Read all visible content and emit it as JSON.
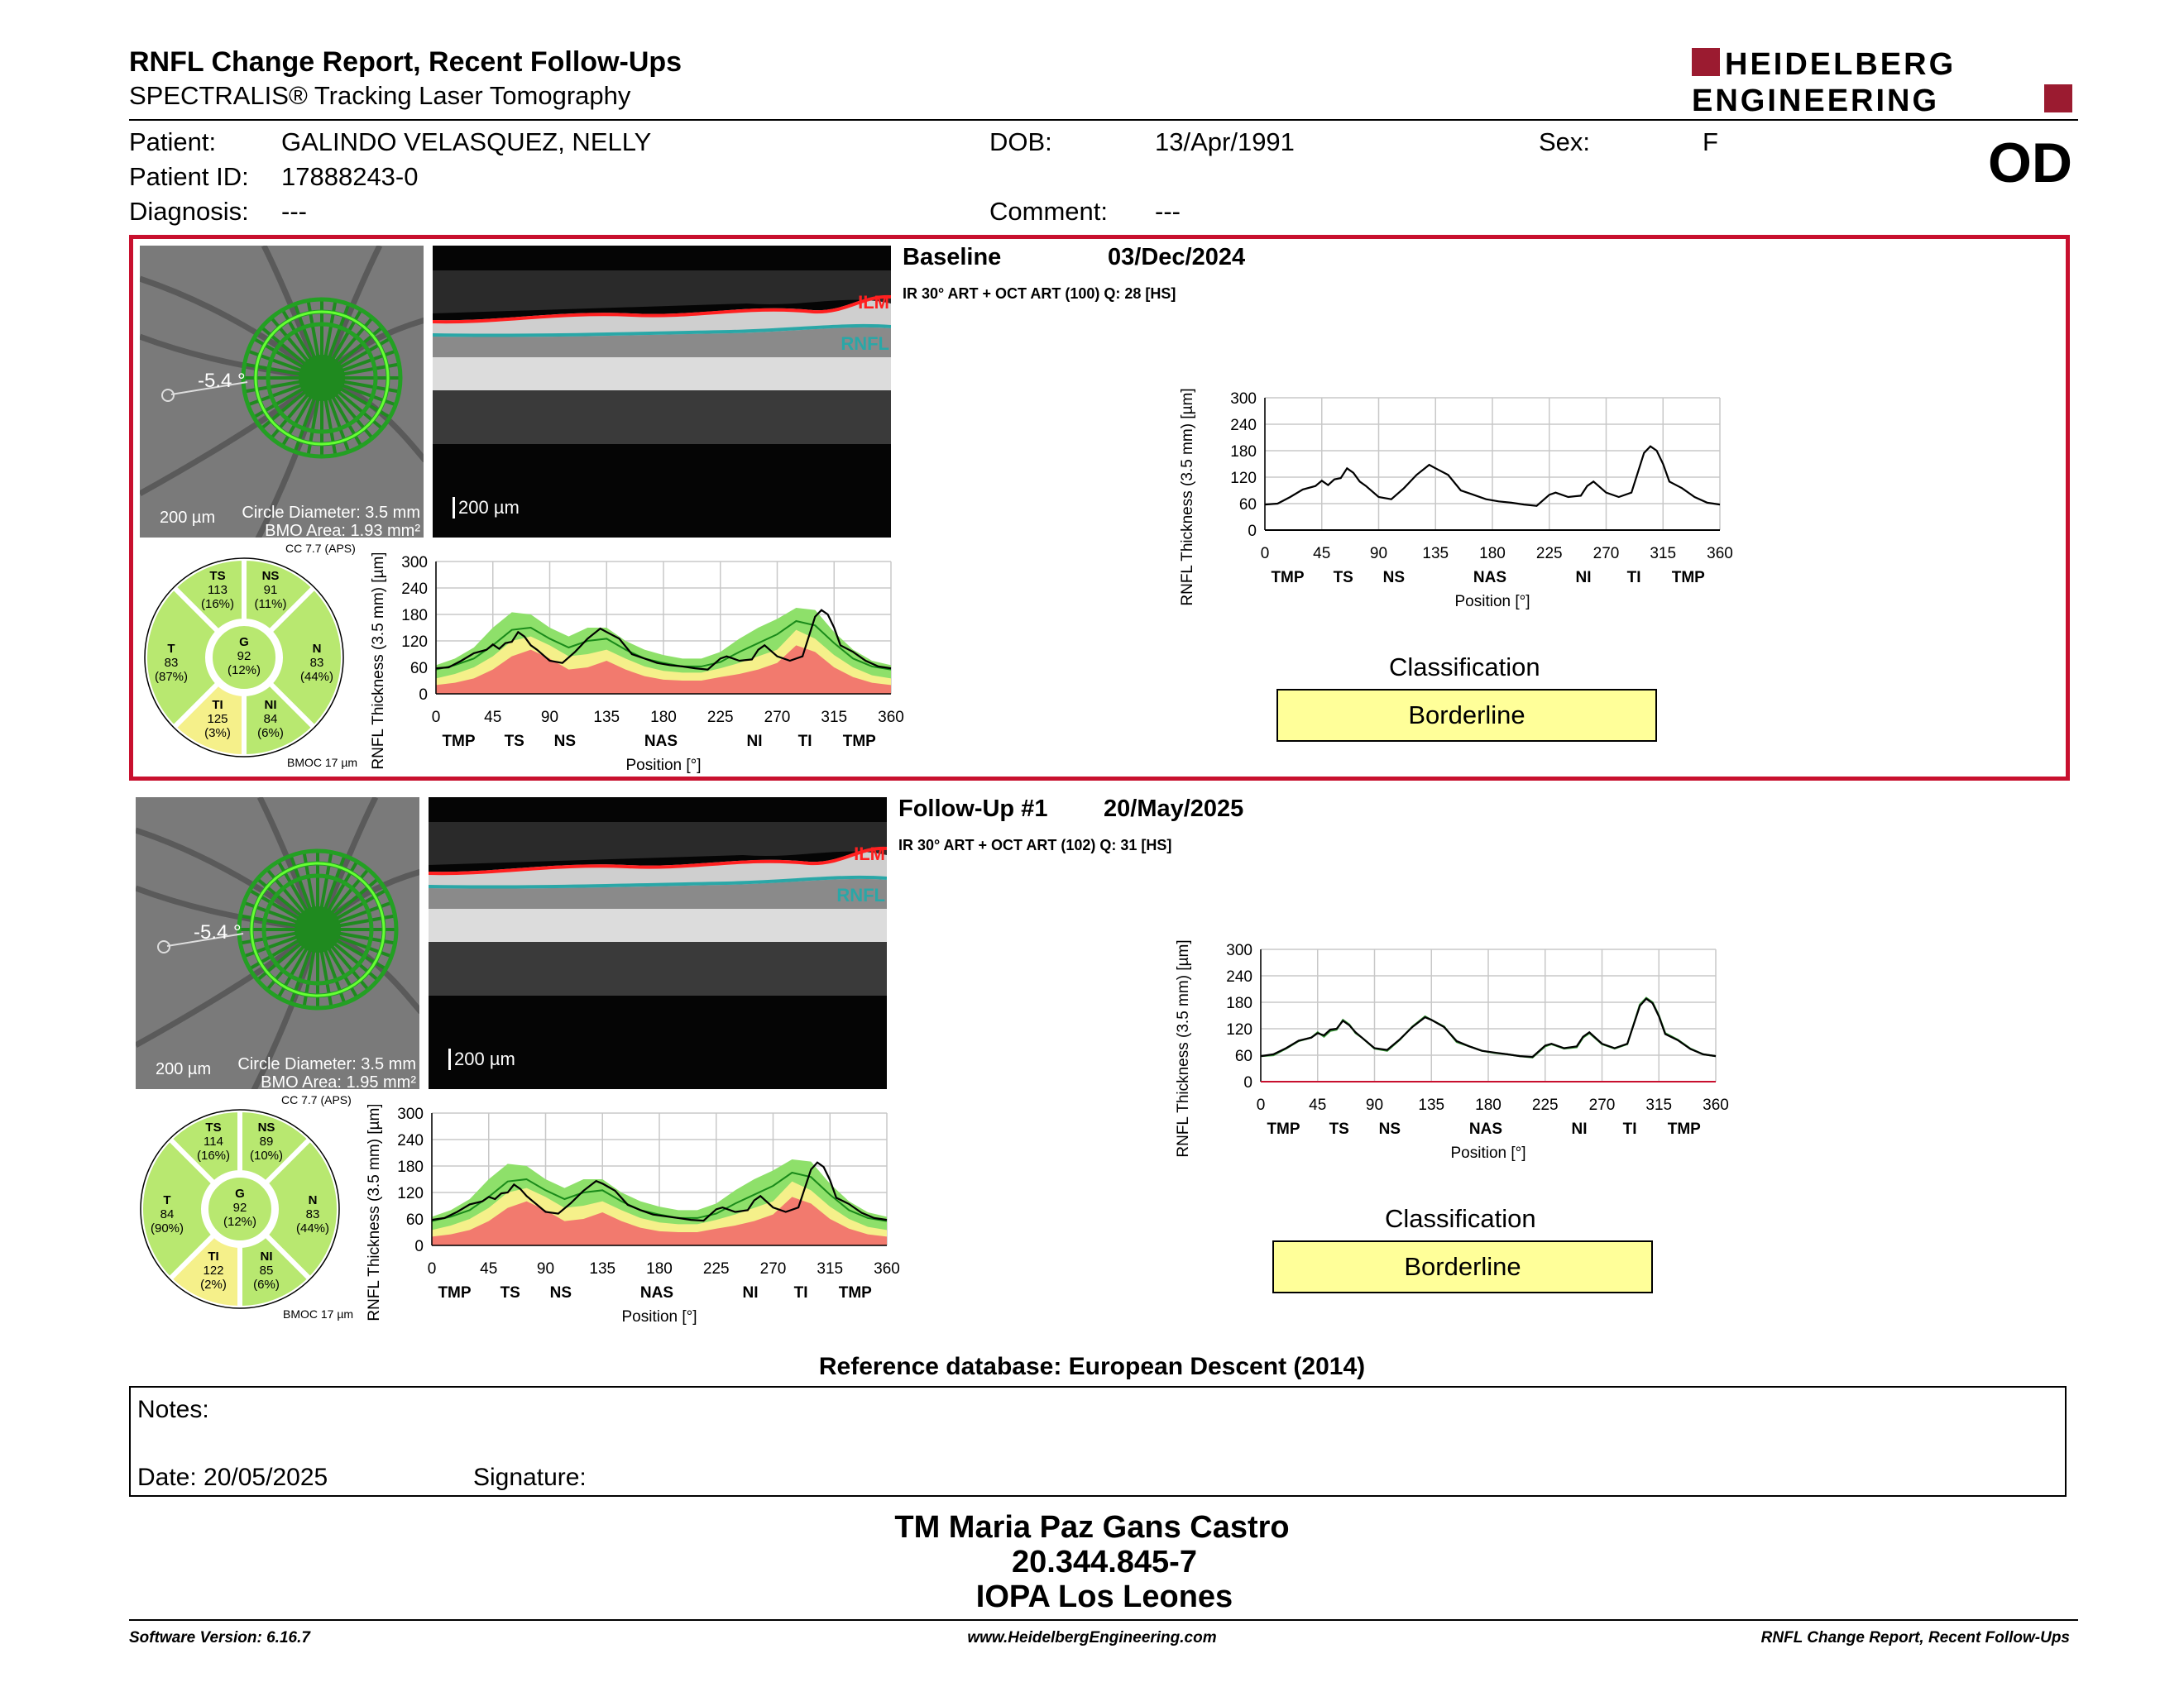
{
  "header": {
    "title": "RNFL Change Report, Recent Follow-Ups",
    "subtitle": "SPECTRALIS® Tracking Laser Tomography",
    "logo_line1": "HEIDELBERG",
    "logo_line2": "ENGINEERING",
    "eye": "OD"
  },
  "patient": {
    "patient_label": "Patient:",
    "patient_value": "GALINDO VELASQUEZ, NELLY",
    "id_label": "Patient ID:",
    "id_value": "17888243-0",
    "diagnosis_label": "Diagnosis:",
    "diagnosis_value": "---",
    "dob_label": "DOB:",
    "dob_value": "13/Apr/1991",
    "comment_label": "Comment:",
    "comment_value": "---",
    "sex_label": "Sex:",
    "sex_value": "F"
  },
  "exams": [
    {
      "title": "Baseline",
      "date": "03/Dec/2024",
      "scan_info": "IR 30° ART + OCT ART (100) Q: 28 [HS]",
      "angle": "-5.4 °",
      "fundus_scale": "200 µm",
      "circle_diameter": "Circle Diameter: 3.5 mm",
      "bmo_area": "BMO Area: 1.93 mm²",
      "oct_scale": "200 µm",
      "ilm": "ILM",
      "rnfl": "RNFL",
      "cc": "CC 7.7 (APS)",
      "bmoc": "BMOC 17 µm",
      "sectors": {
        "TS": {
          "label": "TS",
          "value": "113",
          "pct": "(16%)"
        },
        "NS": {
          "label": "NS",
          "value": "91",
          "pct": "(11%)"
        },
        "T": {
          "label": "T",
          "value": "83",
          "pct": "(87%)"
        },
        "G": {
          "label": "G",
          "value": "92",
          "pct": "(12%)"
        },
        "N": {
          "label": "N",
          "value": "83",
          "pct": "(44%)"
        },
        "TI": {
          "label": "TI",
          "value": "125",
          "pct": "(3%)"
        },
        "NI": {
          "label": "NI",
          "value": "84",
          "pct": "(6%)"
        }
      },
      "classification_label": "Classification",
      "classification_value": "Borderline"
    },
    {
      "title": "Follow-Up #1",
      "date": "20/May/2025",
      "scan_info": "IR 30° ART + OCT ART (102) Q: 31 [HS]",
      "angle": "-5.4 °",
      "fundus_scale": "200 µm",
      "circle_diameter": "Circle Diameter: 3.5 mm",
      "bmo_area": "BMO Area: 1.95 mm²",
      "oct_scale": "200 µm",
      "ilm": "ILM",
      "rnfl": "RNFL",
      "cc": "CC 7.7 (APS)",
      "bmoc": "BMOC 17 µm",
      "sectors": {
        "TS": {
          "label": "TS",
          "value": "114",
          "pct": "(16%)"
        },
        "NS": {
          "label": "NS",
          "value": "89",
          "pct": "(10%)"
        },
        "T": {
          "label": "T",
          "value": "84",
          "pct": "(90%)"
        },
        "G": {
          "label": "G",
          "value": "92",
          "pct": "(12%)"
        },
        "N": {
          "label": "N",
          "value": "83",
          "pct": "(44%)"
        },
        "TI": {
          "label": "TI",
          "value": "122",
          "pct": "(2%)"
        },
        "NI": {
          "label": "NI",
          "value": "85",
          "pct": "(6%)"
        }
      },
      "classification_label": "Classification",
      "classification_value": "Borderline"
    }
  ],
  "chart_data": [
    {
      "type": "line",
      "ylabel": "RNFL Thickness (3.5 mm) [µm]",
      "xlabel": "Position [°]",
      "ylim": [
        0,
        300
      ],
      "xlim": [
        0,
        360
      ],
      "yticks": [
        "0",
        "60",
        "120",
        "180",
        "240",
        "300"
      ],
      "xticks": [
        "0",
        "45",
        "90",
        "135",
        "180",
        "225",
        "270",
        "315",
        "360"
      ],
      "sector_labels": [
        "TMP",
        "TS",
        "NS",
        "NAS",
        "NI",
        "TI",
        "TMP"
      ],
      "sector_positions": [
        18,
        62,
        102,
        178,
        252,
        292,
        335
      ],
      "normal_bands": {
        "red_upper": [
          20,
          25,
          35,
          55,
          85,
          100,
          80,
          55,
          60,
          75,
          55,
          40,
          32,
          30,
          30,
          38,
          45,
          55,
          70,
          110,
          95,
          60,
          38,
          25,
          20
        ],
        "yellow_upper": [
          35,
          45,
          60,
          85,
          120,
          130,
          110,
          85,
          90,
          100,
          80,
          62,
          52,
          48,
          48,
          58,
          70,
          85,
          100,
          145,
          125,
          88,
          60,
          42,
          35
        ],
        "green_upper": [
          65,
          80,
          105,
          150,
          185,
          180,
          150,
          130,
          150,
          150,
          120,
          100,
          88,
          80,
          80,
          95,
          125,
          150,
          170,
          195,
          190,
          140,
          100,
          75,
          65
        ],
        "mean": [
          55,
          65,
          80,
          110,
          145,
          150,
          125,
          105,
          120,
          125,
          100,
          80,
          70,
          62,
          62,
          72,
          95,
          115,
          135,
          165,
          155,
          115,
          80,
          62,
          55
        ]
      },
      "x_grid": [
        0,
        15,
        30,
        45,
        60,
        75,
        90,
        105,
        120,
        135,
        150,
        165,
        180,
        195,
        210,
        225,
        240,
        255,
        270,
        285,
        300,
        315,
        330,
        345,
        360
      ],
      "series": [
        {
          "x": [
            0,
            10,
            20,
            30,
            40,
            45,
            50,
            55,
            60,
            65,
            70,
            75,
            80,
            90,
            100,
            110,
            120,
            130,
            135,
            145,
            155,
            165,
            175,
            185,
            195,
            205,
            215,
            225,
            230,
            240,
            250,
            255,
            260,
            270,
            280,
            290,
            300,
            305,
            310,
            315,
            320,
            330,
            340,
            350,
            360
          ],
          "y": [
            58,
            60,
            75,
            92,
            100,
            112,
            102,
            115,
            118,
            140,
            130,
            110,
            100,
            75,
            70,
            95,
            125,
            148,
            140,
            125,
            90,
            80,
            70,
            65,
            62,
            58,
            55,
            80,
            85,
            75,
            78,
            100,
            110,
            85,
            75,
            85,
            175,
            190,
            180,
            150,
            110,
            95,
            75,
            62,
            58
          ]
        }
      ]
    },
    {
      "type": "line",
      "ylabel": "RNFL Thickness (3.5 mm) [µm]",
      "xlabel": "Position [°]",
      "ylim": [
        0,
        300
      ],
      "xlim": [
        0,
        360
      ],
      "yticks": [
        "0",
        "60",
        "120",
        "180",
        "240",
        "300"
      ],
      "xticks": [
        "0",
        "45",
        "90",
        "135",
        "180",
        "225",
        "270",
        "315",
        "360"
      ],
      "sector_labels": [
        "TMP",
        "TS",
        "NS",
        "NAS",
        "NI",
        "TI",
        "TMP"
      ],
      "sector_positions": [
        18,
        62,
        102,
        178,
        252,
        292,
        335
      ],
      "series": [
        {
          "x": [
            0,
            10,
            20,
            30,
            40,
            45,
            50,
            55,
            60,
            65,
            70,
            75,
            80,
            90,
            100,
            110,
            120,
            130,
            135,
            145,
            155,
            165,
            175,
            185,
            195,
            205,
            215,
            225,
            230,
            240,
            250,
            255,
            260,
            270,
            280,
            290,
            300,
            305,
            310,
            315,
            320,
            330,
            340,
            350,
            360
          ],
          "y": [
            58,
            62,
            76,
            93,
            100,
            110,
            105,
            118,
            120,
            138,
            128,
            112,
            100,
            76,
            72,
            96,
            124,
            146,
            140,
            124,
            92,
            80,
            70,
            66,
            62,
            58,
            56,
            82,
            86,
            76,
            80,
            102,
            112,
            86,
            76,
            86,
            172,
            188,
            178,
            148,
            108,
            94,
            74,
            62,
            58
          ]
        }
      ]
    },
    {
      "type": "line",
      "ylabel": "RNFL Thickness (3.5 mm) [µm]",
      "xlabel": "Position [°]",
      "ylim": [
        0,
        300
      ],
      "xlim": [
        0,
        360
      ],
      "yticks": [
        "0",
        "60",
        "120",
        "180",
        "240",
        "300"
      ],
      "xticks": [
        "0",
        "45",
        "90",
        "135",
        "180",
        "225",
        "270",
        "315",
        "360"
      ],
      "sector_labels": [
        "TMP",
        "TS",
        "NS",
        "NAS",
        "NI",
        "TI",
        "TMP"
      ],
      "sector_positions": [
        18,
        62,
        102,
        178,
        252,
        292,
        335
      ],
      "series": [
        {
          "x": [
            0,
            10,
            20,
            30,
            40,
            45,
            50,
            55,
            60,
            65,
            70,
            75,
            80,
            90,
            100,
            110,
            120,
            130,
            135,
            145,
            155,
            165,
            175,
            185,
            195,
            205,
            215,
            225,
            230,
            240,
            250,
            255,
            260,
            270,
            280,
            290,
            300,
            305,
            310,
            315,
            320,
            330,
            340,
            350,
            360
          ],
          "y": [
            58,
            60,
            75,
            92,
            100,
            112,
            102,
            115,
            118,
            140,
            130,
            110,
            100,
            75,
            70,
            95,
            125,
            148,
            140,
            125,
            90,
            80,
            70,
            65,
            62,
            58,
            55,
            80,
            85,
            75,
            78,
            100,
            110,
            85,
            75,
            85,
            175,
            190,
            180,
            150,
            110,
            95,
            75,
            62,
            58
          ]
        },
        {
          "x": [
            0,
            10,
            20,
            30,
            40,
            45,
            50,
            55,
            60,
            65,
            70,
            75,
            80,
            90,
            100,
            110,
            120,
            130,
            135,
            145,
            155,
            165,
            175,
            185,
            195,
            205,
            215,
            225,
            230,
            240,
            250,
            255,
            260,
            270,
            280,
            290,
            300,
            305,
            310,
            315,
            320,
            330,
            340,
            350,
            360
          ],
          "y": [
            58,
            62,
            76,
            93,
            100,
            110,
            105,
            118,
            120,
            138,
            128,
            112,
            100,
            76,
            72,
            96,
            124,
            146,
            140,
            124,
            92,
            80,
            70,
            66,
            62,
            58,
            56,
            82,
            86,
            76,
            80,
            102,
            112,
            86,
            76,
            86,
            172,
            188,
            178,
            148,
            108,
            94,
            74,
            62,
            58
          ]
        }
      ]
    }
  ],
  "reference_db": "Reference database: European Descent (2014)",
  "notes": {
    "notes_label": "Notes:",
    "date_label": "Date: 20/05/2025",
    "signature_label": "Signature:"
  },
  "signature": {
    "name": "TM Maria Paz Gans Castro",
    "rut": "20.344.845-7",
    "org": "IOPA Los Leones"
  },
  "footer": {
    "version": "Software Version: 6.16.7",
    "url": "www.HeidelbergEngineering.com",
    "report": "RNFL Change Report, Recent Follow-Ups"
  },
  "colors": {
    "selection_border": "#c8102e",
    "logo_red": "#9b1b30",
    "classification_bg": "#ffff99",
    "normal_green": "#8ee06a",
    "borderline_yellow": "#f5f08a",
    "outside_red": "#f27a6e",
    "ilm_red": "#ff2020",
    "rnfl_cyan": "#2aa7a7"
  }
}
